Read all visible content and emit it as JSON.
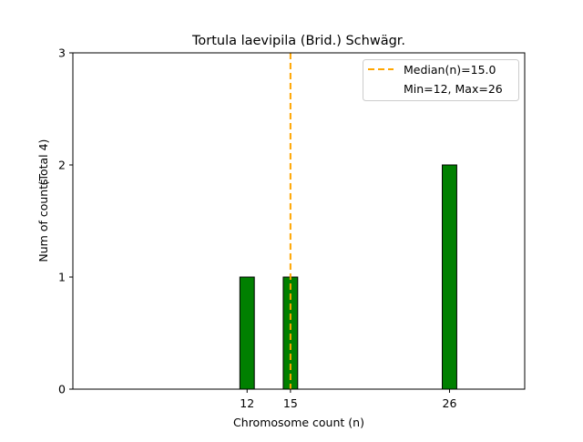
{
  "chart_data": {
    "type": "bar",
    "title": "Tortula laevipila (Brid.) Schwägr.",
    "xlabel": "Chromosome count (n)",
    "ylabel": "Num of counts",
    "ylabel_total": "(Total 4)",
    "x": [
      12,
      15,
      26
    ],
    "values": [
      1,
      1,
      2
    ],
    "bar_width": 1,
    "zero_baseline_range": [
      0,
      29.5
    ],
    "xlim": [
      -0.05,
      31.2
    ],
    "ylim": [
      0,
      3
    ],
    "xticks": [
      12,
      15,
      26
    ],
    "yticks": [
      0,
      1,
      2,
      3
    ],
    "median": 15.0,
    "legend": {
      "placement": "top-right",
      "entries": [
        "Median(n)=15.0",
        "Min=12, Max=26"
      ]
    },
    "colors": {
      "bar": "#008000",
      "median": "#FFA500"
    },
    "grid": false
  }
}
